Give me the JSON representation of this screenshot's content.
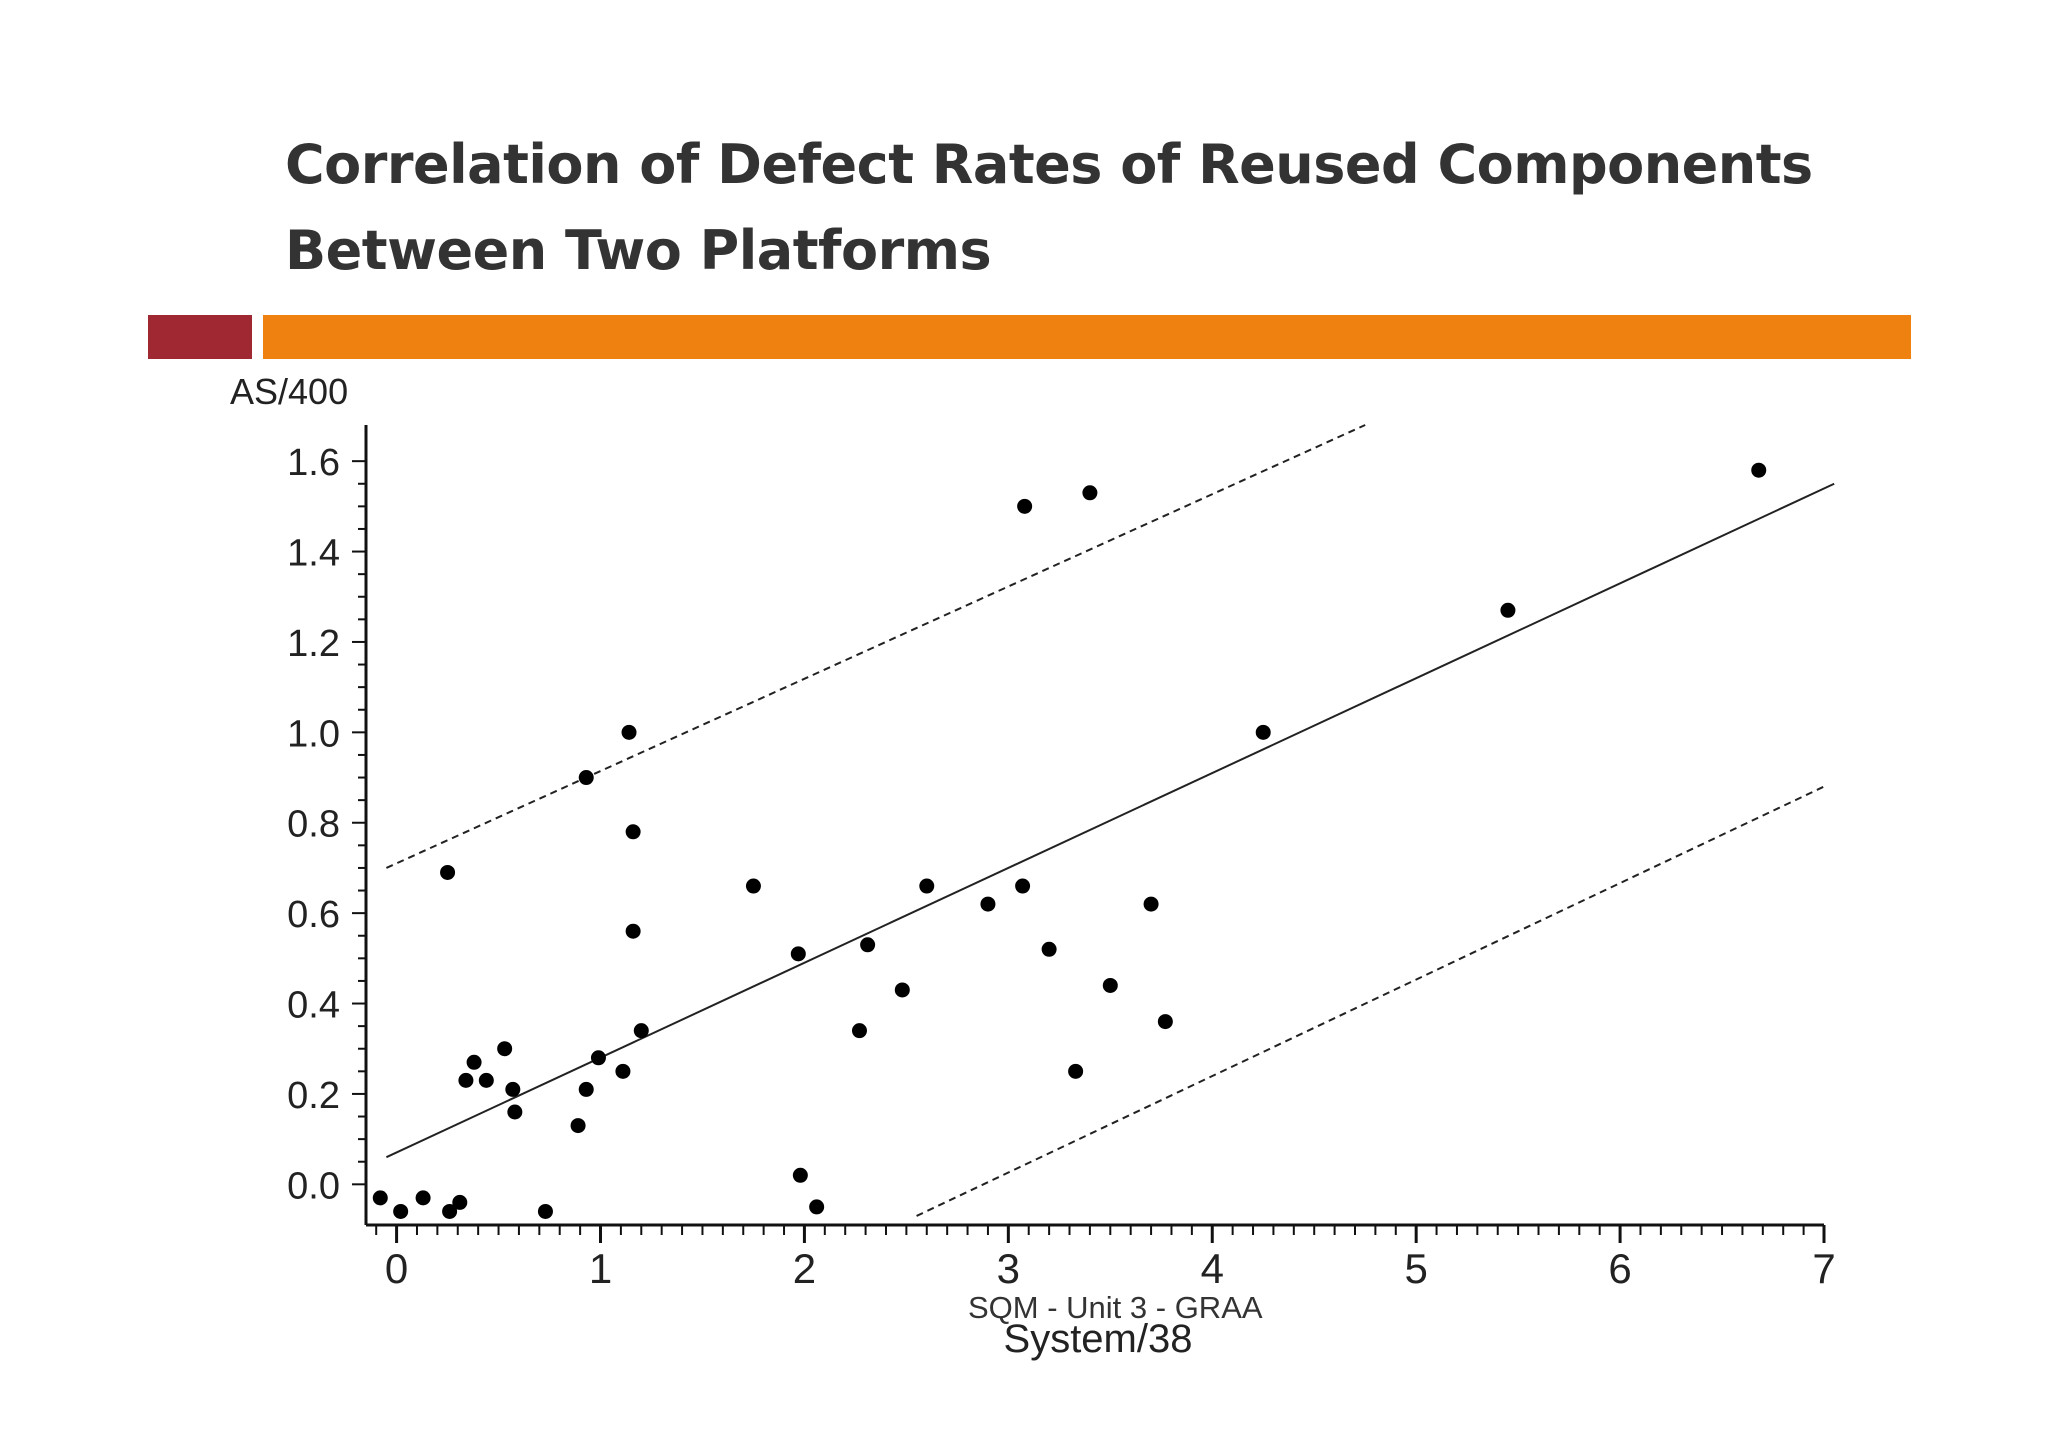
{
  "slide": {
    "title_line1": "Correlation of Defect Rates of Reused Components",
    "title_line2": "Between Two Platforms",
    "footer": "SQM - Unit 3 - GRAA",
    "colors": {
      "title": "#333333",
      "accent_red": "#A02833",
      "accent_orange": "#EF8110"
    }
  },
  "chart_data": {
    "type": "scatter",
    "title": "",
    "xlabel": "System/38",
    "ylabel": "AS/400",
    "xlim": [
      -0.15,
      7
    ],
    "ylim": [
      -0.09,
      1.68
    ],
    "xticks": [
      0,
      1,
      2,
      3,
      4,
      5,
      6,
      7
    ],
    "xtick_labels": [
      "0",
      "1",
      "2",
      "3",
      "4",
      "5",
      "6",
      "7"
    ],
    "yticks": [
      0.0,
      0.2,
      0.4,
      0.6,
      0.8,
      1.0,
      1.2,
      1.4,
      1.6
    ],
    "ytick_labels": [
      "0.0",
      "0.2",
      "0.4",
      "0.6",
      "0.8",
      "1.0",
      "1.2",
      "1.4",
      "1.6"
    ],
    "grid": false,
    "points": [
      {
        "x": -0.08,
        "y": -0.03
      },
      {
        "x": 0.02,
        "y": -0.06
      },
      {
        "x": 0.13,
        "y": -0.03
      },
      {
        "x": 0.26,
        "y": -0.06
      },
      {
        "x": 0.31,
        "y": -0.04
      },
      {
        "x": 0.73,
        "y": -0.06
      },
      {
        "x": 0.25,
        "y": 0.69
      },
      {
        "x": 0.34,
        "y": 0.23
      },
      {
        "x": 0.38,
        "y": 0.27
      },
      {
        "x": 0.44,
        "y": 0.23
      },
      {
        "x": 0.53,
        "y": 0.3
      },
      {
        "x": 0.57,
        "y": 0.21
      },
      {
        "x": 0.58,
        "y": 0.16
      },
      {
        "x": 0.89,
        "y": 0.13
      },
      {
        "x": 0.93,
        "y": 0.21
      },
      {
        "x": 0.93,
        "y": 0.9
      },
      {
        "x": 0.99,
        "y": 0.28
      },
      {
        "x": 1.11,
        "y": 0.25
      },
      {
        "x": 1.14,
        "y": 1.0
      },
      {
        "x": 1.16,
        "y": 0.78
      },
      {
        "x": 1.16,
        "y": 0.56
      },
      {
        "x": 1.2,
        "y": 0.34
      },
      {
        "x": 1.75,
        "y": 0.66
      },
      {
        "x": 1.97,
        "y": 0.51
      },
      {
        "x": 1.98,
        "y": 0.02
      },
      {
        "x": 2.06,
        "y": -0.05
      },
      {
        "x": 2.27,
        "y": 0.34
      },
      {
        "x": 2.31,
        "y": 0.53
      },
      {
        "x": 2.48,
        "y": 0.43
      },
      {
        "x": 2.6,
        "y": 0.66
      },
      {
        "x": 2.9,
        "y": 0.62
      },
      {
        "x": 3.07,
        "y": 0.66
      },
      {
        "x": 3.08,
        "y": 1.5
      },
      {
        "x": 3.2,
        "y": 0.52
      },
      {
        "x": 3.33,
        "y": 0.25
      },
      {
        "x": 3.4,
        "y": 1.53
      },
      {
        "x": 3.5,
        "y": 0.44
      },
      {
        "x": 3.7,
        "y": 0.62
      },
      {
        "x": 3.77,
        "y": 0.36
      },
      {
        "x": 4.25,
        "y": 1.0
      },
      {
        "x": 5.45,
        "y": 1.27
      },
      {
        "x": 6.68,
        "y": 1.58
      }
    ],
    "lines": [
      {
        "role": "fit",
        "style": "solid",
        "x": [
          -0.05,
          7.05
        ],
        "y": [
          0.06,
          1.55
        ]
      },
      {
        "role": "upper-bound",
        "style": "dashed",
        "x": [
          -0.05,
          4.75
        ],
        "y": [
          0.7,
          1.68
        ]
      },
      {
        "role": "lower-bound",
        "style": "dashed",
        "x": [
          2.55,
          7.0
        ],
        "y": [
          -0.07,
          0.88
        ]
      }
    ]
  }
}
